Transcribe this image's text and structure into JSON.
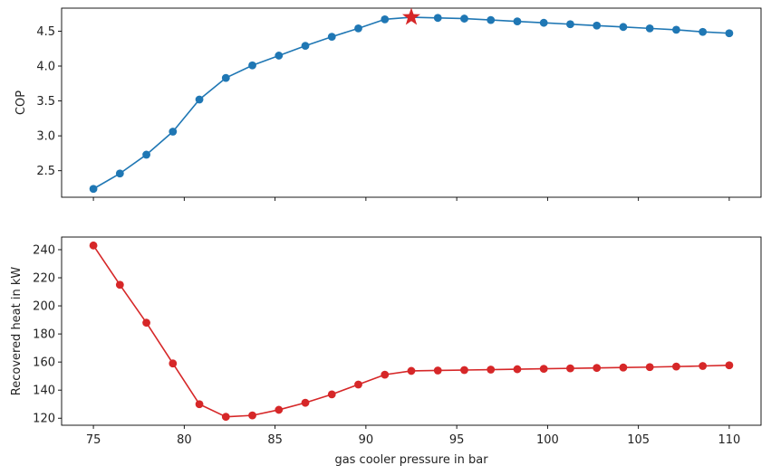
{
  "chart_data": [
    {
      "type": "line",
      "xlabel": "",
      "ylabel": "COP",
      "xlim": [
        73.25,
        111.75
      ],
      "ylim": [
        2.12,
        4.83
      ],
      "x": [
        75.0,
        76.4583,
        77.9167,
        79.375,
        80.8333,
        82.2917,
        83.75,
        85.2083,
        86.6667,
        88.125,
        89.5833,
        91.0417,
        92.5,
        93.9583,
        95.4167,
        96.875,
        98.3333,
        99.7917,
        101.25,
        102.7083,
        104.1667,
        105.625,
        107.0833,
        108.5417,
        110.0
      ],
      "xticks": [
        75,
        80,
        85,
        90,
        95,
        100,
        105,
        110
      ],
      "yticks": [
        2.5,
        3.0,
        3.5,
        4.0,
        4.5
      ],
      "ytick_labels": [
        "2.5",
        "3.0",
        "3.5",
        "4.0",
        "4.5"
      ],
      "series": [
        {
          "color": "#1f77b4",
          "marker": "circle",
          "values": [
            2.24,
            2.46,
            2.73,
            3.06,
            3.52,
            3.83,
            4.01,
            4.15,
            4.29,
            4.42,
            4.54,
            4.67,
            4.7,
            4.69,
            4.68,
            4.66,
            4.64,
            4.62,
            4.6,
            4.58,
            4.56,
            4.54,
            4.52,
            4.49,
            4.47
          ]
        }
      ],
      "highlight": {
        "x": 92.5,
        "y": 4.7,
        "marker": "star",
        "color": "#d62728"
      }
    },
    {
      "type": "line",
      "xlabel": "gas cooler pressure in bar",
      "ylabel": "Recovered heat in kW",
      "xlim": [
        73.25,
        111.75
      ],
      "ylim": [
        115,
        249
      ],
      "x": [
        75.0,
        76.4583,
        77.9167,
        79.375,
        80.8333,
        82.2917,
        83.75,
        85.2083,
        86.6667,
        88.125,
        89.5833,
        91.0417,
        92.5,
        93.9583,
        95.4167,
        96.875,
        98.3333,
        99.7917,
        101.25,
        102.7083,
        104.1667,
        105.625,
        107.0833,
        108.5417,
        110.0
      ],
      "xticks": [
        75,
        80,
        85,
        90,
        95,
        100,
        105,
        110
      ],
      "xtick_labels": [
        "75",
        "80",
        "85",
        "90",
        "95",
        "100",
        "105",
        "110"
      ],
      "yticks": [
        120,
        140,
        160,
        180,
        200,
        220,
        240
      ],
      "ytick_labels": [
        "120",
        "140",
        "160",
        "180",
        "200",
        "220",
        "240"
      ],
      "series": [
        {
          "color": "#d62728",
          "marker": "circle",
          "values": [
            243,
            215,
            188,
            159,
            130,
            121,
            122,
            126,
            131,
            137,
            144,
            151,
            153.7,
            154.0,
            154.3,
            154.6,
            154.9,
            155.2,
            155.5,
            155.8,
            156.1,
            156.4,
            156.8,
            157.2,
            157.7
          ]
        }
      ]
    }
  ]
}
